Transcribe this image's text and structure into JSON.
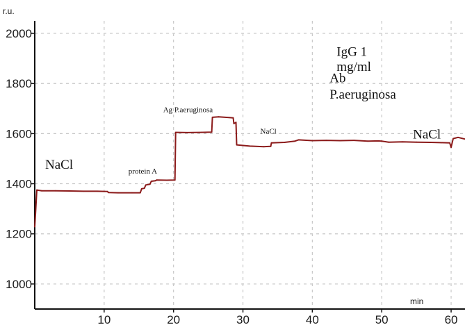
{
  "chart_data": {
    "type": "line",
    "title": "",
    "xlabel": "min",
    "ylabel": "r.u.",
    "xlim": [
      0,
      62
    ],
    "ylim": [
      900,
      2050
    ],
    "x_ticks": [
      10,
      20,
      30,
      40,
      50,
      60
    ],
    "y_ticks": [
      1000,
      1200,
      1400,
      1600,
      1800,
      2000
    ],
    "grid": true,
    "line_color": "#8b1a1a",
    "grid_color": "#c8c8c8",
    "series": [
      {
        "values": [
          [
            0.0,
            1228
          ],
          [
            0.3,
            1375
          ],
          [
            1.0,
            1372
          ],
          [
            3.0,
            1372
          ],
          [
            5.0,
            1371
          ],
          [
            7.0,
            1370
          ],
          [
            9.0,
            1370
          ],
          [
            10.5,
            1369
          ],
          [
            10.6,
            1365
          ],
          [
            12.0,
            1364
          ],
          [
            14.0,
            1364
          ],
          [
            15.2,
            1364
          ],
          [
            15.4,
            1380
          ],
          [
            15.8,
            1382
          ],
          [
            16.0,
            1395
          ],
          [
            16.6,
            1398
          ],
          [
            16.8,
            1410
          ],
          [
            17.4,
            1412
          ],
          [
            17.6,
            1415
          ],
          [
            19.0,
            1414
          ],
          [
            20.2,
            1415
          ],
          [
            20.3,
            1605
          ],
          [
            22.0,
            1604
          ],
          [
            24.0,
            1605
          ],
          [
            25.5,
            1606
          ],
          [
            25.6,
            1665
          ],
          [
            26.5,
            1667
          ],
          [
            28.0,
            1664
          ],
          [
            28.6,
            1663
          ],
          [
            28.7,
            1640
          ],
          [
            29.0,
            1645
          ],
          [
            29.1,
            1555
          ],
          [
            31.0,
            1550
          ],
          [
            33.0,
            1548
          ],
          [
            34.0,
            1549
          ],
          [
            34.1,
            1563
          ],
          [
            36.0,
            1565
          ],
          [
            37.5,
            1570
          ],
          [
            38.0,
            1575
          ],
          [
            40.0,
            1572
          ],
          [
            42.0,
            1573
          ],
          [
            44.0,
            1572
          ],
          [
            46.0,
            1573
          ],
          [
            48.0,
            1570
          ],
          [
            49.5,
            1571
          ],
          [
            50.0,
            1570
          ],
          [
            51.0,
            1566
          ],
          [
            53.0,
            1567
          ],
          [
            55.0,
            1566
          ],
          [
            57.0,
            1565
          ],
          [
            58.5,
            1564
          ],
          [
            59.8,
            1563
          ],
          [
            60.0,
            1545
          ],
          [
            60.3,
            1580
          ],
          [
            61.0,
            1585
          ],
          [
            62.0,
            1578
          ]
        ]
      }
    ],
    "annotations": [
      {
        "id": "nacl-1",
        "text": "NaCl",
        "x": 1.5,
        "y": 1460,
        "size": "large"
      },
      {
        "id": "protein-a",
        "text": "protein A",
        "x": 13.5,
        "y": 1440,
        "size": "small"
      },
      {
        "id": "ag-p-aeruginosa",
        "text": "Ag P.aeruginosa",
        "x": 18.5,
        "y": 1685,
        "size": "small"
      },
      {
        "id": "nacl-2",
        "text": "NaCl",
        "x": 32.5,
        "y": 1600,
        "size": "small"
      },
      {
        "id": "nacl-3",
        "text": "NaCl",
        "x": 54.5,
        "y": 1580,
        "size": "large"
      },
      {
        "id": "igg-1",
        "text": "IgG 1",
        "x": 43.5,
        "y": 1910,
        "size": "large"
      },
      {
        "id": "mg-ml",
        "text": "mg/ml",
        "x": 43.5,
        "y": 1850,
        "size": "large"
      },
      {
        "id": "ab",
        "text": "Ab",
        "x": 42.5,
        "y": 1805,
        "size": "large"
      },
      {
        "id": "p-aeruginosa",
        "text": "P.aeruginosa",
        "x": 42.5,
        "y": 1740,
        "size": "large"
      }
    ]
  }
}
